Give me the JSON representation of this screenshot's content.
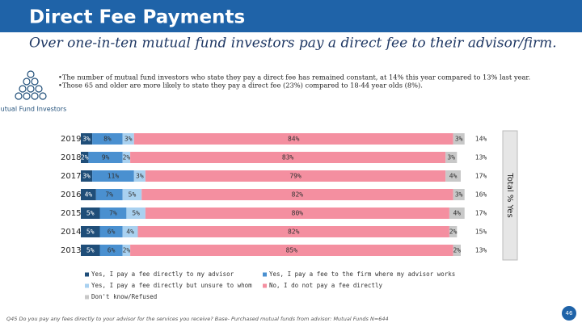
{
  "header": {
    "title": "Direct Fee Payments",
    "subtitle": "Over one-in-ten mutual fund investors pay a direct fee to their advisor/firm."
  },
  "bullets": [
    "•The number of mutual fund investors who state they pay a direct fee has remained constant, at 14% this year compared to 13% last year.",
    "•Those 65 and older are more likely to state they pay a direct fee (23%) compared to 18-44 year olds (8%)."
  ],
  "icon_label": "Mutual Fund Investors",
  "chart_data": {
    "type": "stacked-bar-horizontal",
    "categories": [
      "2019",
      "2018",
      "2017",
      "2016",
      "2015",
      "2014",
      "2013"
    ],
    "xlim": [
      0,
      100
    ],
    "series": [
      {
        "name": "Yes, I pay a fee directly to my advisor",
        "color": "#1f4e79",
        "values": [
          3,
          2,
          3,
          4,
          5,
          5,
          5
        ],
        "value_labels": [
          "3%",
          "2%",
          "3%",
          "4%",
          "5%",
          "5%",
          "5%"
        ]
      },
      {
        "name": "Yes, I pay a fee to the firm where my advisor works",
        "color": "#4a90d0",
        "values": [
          8,
          9,
          11,
          7,
          7,
          6,
          6
        ],
        "value_labels": [
          "8%",
          "9%",
          "11%",
          "7%",
          "7%",
          "6%",
          "6%"
        ]
      },
      {
        "name": "Yes, I pay a fee directly but unsure to whom",
        "color": "#a9d1f0",
        "values": [
          3,
          2,
          3,
          5,
          5,
          4,
          2
        ],
        "value_labels": [
          "3%",
          "2%",
          "3%",
          "5%",
          "5%",
          "4%",
          "2%"
        ]
      },
      {
        "name": "No, I do not pay a fee directly",
        "color": "#f48fa0",
        "values": [
          84,
          83,
          79,
          82,
          80,
          82,
          85
        ],
        "value_labels": [
          "84%",
          "83%",
          "79%",
          "82%",
          "80%",
          "82%",
          "85%"
        ]
      },
      {
        "name": "Don't know/Refused",
        "color": "#c8c8c8",
        "values": [
          3,
          3,
          4,
          3,
          4,
          2,
          2
        ],
        "value_labels": [
          "3%",
          "3%",
          "4%",
          "3%",
          "4%",
          "2%",
          "2%"
        ]
      }
    ],
    "totals": {
      "title": "Total % Yes",
      "values": [
        14,
        13,
        17,
        16,
        17,
        15,
        13
      ],
      "value_labels": [
        "14%",
        "13%",
        "17%",
        "16%",
        "17%",
        "15%",
        "13%"
      ]
    }
  },
  "footnote": "Q45 Do you pay any fees directly to your advisor for the services you receive? Base- Purchased mutual funds from advisor: Mutual Funds N=644",
  "page_number": "46"
}
